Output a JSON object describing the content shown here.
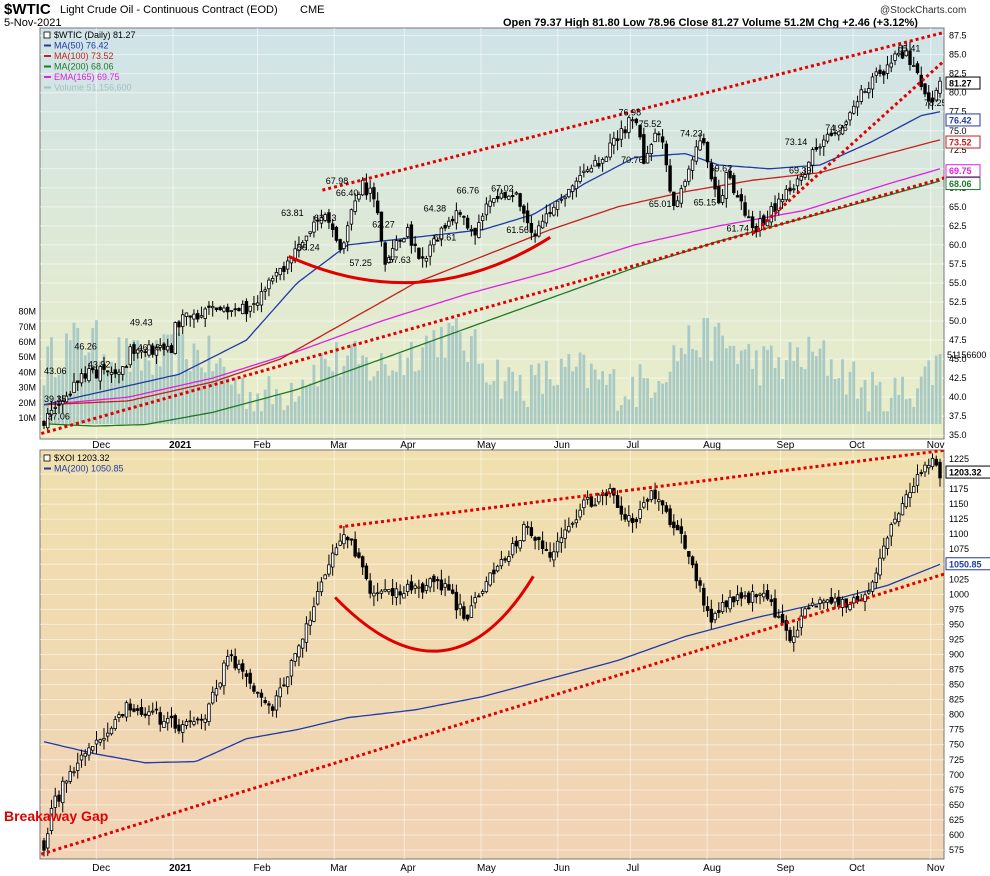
{
  "header": {
    "symbol": "$WTIC",
    "name": "Light Crude Oil - Continuous Contract (EOD)",
    "exchange": "CME",
    "date": "5-Nov-2021",
    "ohlc": "Open 79.37  High 81.80  Low 78.96  Close 81.27  Volume 51.2M  Chg +2.46 (+3.12%)",
    "brand": "@StockCharts.com"
  },
  "chart_data": [
    {
      "type": "candlestick",
      "title": "$WTIC (Daily) 81.27",
      "legend": [
        {
          "label": "$WTIC (Daily) 81.27",
          "color": "#000000"
        },
        {
          "label": "MA(50) 76.42",
          "color": "#1f3aa8"
        },
        {
          "label": "MA(100) 73.52",
          "color": "#c81e1e"
        },
        {
          "label": "MA(200) 68.06",
          "color": "#1d7a28"
        },
        {
          "label": "EMA(165) 69.75",
          "color": "#e020e0"
        },
        {
          "label": "Volume 51,156,600",
          "color": "#9dc3c3"
        }
      ],
      "x_labels": [
        "Dec",
        "2021",
        "Feb",
        "Mar",
        "Apr",
        "May",
        "Jun",
        "Jul",
        "Aug",
        "Sep",
        "Oct",
        "Nov"
      ],
      "y_ticks": [
        35.0,
        37.5,
        40.0,
        42.5,
        45.0,
        47.5,
        50.0,
        52.5,
        55.0,
        57.5,
        60.0,
        62.5,
        65.0,
        67.5,
        70.0,
        72.5,
        75.0,
        77.5,
        80.0,
        82.5,
        85.0,
        87.5
      ],
      "ylim": [
        34.5,
        88.5
      ],
      "volume_ticks": [
        "10M",
        "20M",
        "30M",
        "40M",
        "50M",
        "60M",
        "70M",
        "80M"
      ],
      "volume_last_label": "51156600",
      "price_key": [
        {
          "label": "37.06",
          "t": 0.004,
          "v": 37.06
        },
        {
          "label": "39.35",
          "t": 0.02,
          "v": 39.35
        },
        {
          "label": "43.06",
          "t": 0.05,
          "v": 43.06
        },
        {
          "label": "43.92",
          "t": 0.1,
          "v": 43.92
        },
        {
          "label": "46.26",
          "t": 0.088,
          "v": 46.26
        },
        {
          "label": "46.16",
          "t": 0.155,
          "v": 46.16
        },
        {
          "label": "49.43",
          "t": 0.148,
          "v": 49.43
        },
        {
          "label": "51.8",
          "t": 0.2,
          "v": 51.8
        },
        {
          "label": "51.5",
          "t": 0.24,
          "v": 51.5
        },
        {
          "label": "57.5",
          "t": 0.29,
          "v": 57.5
        },
        {
          "label": "63.81",
          "t": 0.33,
          "v": 63.81
        },
        {
          "label": "59.24",
          "t": 0.355,
          "v": 59.24
        },
        {
          "label": "63.13",
          "t": 0.36,
          "v": 63.13
        },
        {
          "label": "67.98",
          "t": 0.375,
          "v": 67.98
        },
        {
          "label": "66.40",
          "t": 0.392,
          "v": 66.4
        },
        {
          "label": "57.25",
          "t": 0.405,
          "v": 57.25
        },
        {
          "label": "62.27",
          "t": 0.43,
          "v": 62.27
        },
        {
          "label": "57.63",
          "t": 0.445,
          "v": 57.63
        },
        {
          "label": "64.38",
          "t": 0.49,
          "v": 64.38
        },
        {
          "label": "60.61",
          "t": 0.51,
          "v": 60.61
        },
        {
          "label": "66.76",
          "t": 0.53,
          "v": 66.76
        },
        {
          "label": "67.02",
          "t": 0.56,
          "v": 67.02
        },
        {
          "label": "61.56",
          "t": 0.58,
          "v": 61.56
        },
        {
          "label": "66.0",
          "t": 0.61,
          "v": 66.0
        },
        {
          "label": "71.0",
          "t": 0.66,
          "v": 71.0
        },
        {
          "label": "76.98",
          "t": 0.7,
          "v": 76.98
        },
        {
          "label": "70.76",
          "t": 0.712,
          "v": 70.76
        },
        {
          "label": "75.52",
          "t": 0.73,
          "v": 75.52
        },
        {
          "label": "65.01",
          "t": 0.745,
          "v": 65.01
        },
        {
          "label": "74.23",
          "t": 0.78,
          "v": 74.23
        },
        {
          "label": "65.15",
          "t": 0.8,
          "v": 65.15
        },
        {
          "label": "69.62",
          "t": 0.81,
          "v": 69.62
        },
        {
          "label": "61.74",
          "t": 0.84,
          "v": 61.74
        },
        {
          "label": "69.39",
          "t": 0.9,
          "v": 69.39
        },
        {
          "label": "73.14",
          "t": 0.915,
          "v": 73.14
        },
        {
          "label": "74.96",
          "t": 0.945,
          "v": 74.96
        },
        {
          "label": "80.5",
          "t": 0.97,
          "v": 80.5
        },
        {
          "label": "85.41",
          "t": 1.02,
          "v": 85.41
        },
        {
          "label": "78.25",
          "t": 1.053,
          "v": 78.25
        },
        {
          "label": "81.27",
          "t": 1.062,
          "v": 81.27
        }
      ],
      "annotations": [
        {
          "text": "37.06",
          "t": 0.004,
          "v": 37.06
        },
        {
          "text": "39.35",
          "t": 0.0,
          "v": 39.35
        },
        {
          "text": "43.06",
          "t": 0.0,
          "v": 43.06
        },
        {
          "text": "43.92",
          "t": 0.052,
          "v": 43.92
        },
        {
          "text": "46.26",
          "t": 0.036,
          "v": 46.26
        },
        {
          "text": "46.16",
          "t": 0.111,
          "v": 46.16
        },
        {
          "text": "49.43",
          "t": 0.102,
          "v": 49.43
        },
        {
          "text": "63.81",
          "t": 0.281,
          "v": 63.81
        },
        {
          "text": "59.24",
          "t": 0.3,
          "v": 59.24
        },
        {
          "text": "63.13",
          "t": 0.32,
          "v": 63.13
        },
        {
          "text": "67.98",
          "t": 0.334,
          "v": 67.98
        },
        {
          "text": "66.40",
          "t": 0.346,
          "v": 66.4
        },
        {
          "text": "57.25",
          "t": 0.362,
          "v": 57.25
        },
        {
          "text": "62.27",
          "t": 0.389,
          "v": 62.27
        },
        {
          "text": "57.63",
          "t": 0.408,
          "v": 57.63
        },
        {
          "text": "64.38",
          "t": 0.45,
          "v": 64.38
        },
        {
          "text": "60.61",
          "t": 0.462,
          "v": 60.61
        },
        {
          "text": "66.76",
          "t": 0.489,
          "v": 66.76
        },
        {
          "text": "67.02",
          "t": 0.53,
          "v": 67.02
        },
        {
          "text": "61.56",
          "t": 0.548,
          "v": 61.56
        },
        {
          "text": "76.98",
          "t": 0.681,
          "v": 76.98
        },
        {
          "text": "70.76",
          "t": 0.684,
          "v": 70.76
        },
        {
          "text": "75.52",
          "t": 0.705,
          "v": 75.52
        },
        {
          "text": "65.01",
          "t": 0.717,
          "v": 65.01
        },
        {
          "text": "74.23",
          "t": 0.754,
          "v": 74.23
        },
        {
          "text": "65.15",
          "t": 0.77,
          "v": 65.15
        },
        {
          "text": "69.62",
          "t": 0.789,
          "v": 69.62
        },
        {
          "text": "61.74",
          "t": 0.809,
          "v": 61.74
        },
        {
          "text": "69.39",
          "t": 0.883,
          "v": 69.39
        },
        {
          "text": "73.14",
          "t": 0.878,
          "v": 73.14
        },
        {
          "text": "74.96",
          "t": 0.926,
          "v": 74.96
        },
        {
          "text": "85.41",
          "t": 1.012,
          "v": 85.41
        },
        {
          "text": "78.25",
          "t": 1.043,
          "v": 78.25
        }
      ],
      "ma_keys": {
        "ma50": [
          [
            0.0,
            39.0
          ],
          [
            0.08,
            41.0
          ],
          [
            0.16,
            43.0
          ],
          [
            0.24,
            47.5
          ],
          [
            0.3,
            55.0
          ],
          [
            0.36,
            60.0
          ],
          [
            0.44,
            61.0
          ],
          [
            0.52,
            62.0
          ],
          [
            0.58,
            64.0
          ],
          [
            0.64,
            68.0
          ],
          [
            0.7,
            71.5
          ],
          [
            0.76,
            72.0
          ],
          [
            0.8,
            70.5
          ],
          [
            0.86,
            70.0
          ],
          [
            0.92,
            70.5
          ],
          [
            0.98,
            73.5
          ],
          [
            1.04,
            77.0
          ],
          [
            1.062,
            77.5
          ]
        ],
        "ma100": [
          [
            0.0,
            39.0
          ],
          [
            0.1,
            39.5
          ],
          [
            0.2,
            42.0
          ],
          [
            0.28,
            45.0
          ],
          [
            0.36,
            50.0
          ],
          [
            0.44,
            55.0
          ],
          [
            0.52,
            58.5
          ],
          [
            0.6,
            62.0
          ],
          [
            0.68,
            65.0
          ],
          [
            0.76,
            67.0
          ],
          [
            0.84,
            68.5
          ],
          [
            0.92,
            69.5
          ],
          [
            1.0,
            72.0
          ],
          [
            1.062,
            73.8
          ]
        ],
        "ema165": [
          [
            0.0,
            39.0
          ],
          [
            0.1,
            40.0
          ],
          [
            0.2,
            42.5
          ],
          [
            0.3,
            46.0
          ],
          [
            0.4,
            50.0
          ],
          [
            0.5,
            53.5
          ],
          [
            0.6,
            56.5
          ],
          [
            0.7,
            60.0
          ],
          [
            0.8,
            62.5
          ],
          [
            0.9,
            64.5
          ],
          [
            1.0,
            68.0
          ],
          [
            1.062,
            70.0
          ]
        ],
        "ma200": [
          [
            0.0,
            36.5
          ],
          [
            0.06,
            36.2
          ],
          [
            0.12,
            36.4
          ],
          [
            0.2,
            38.0
          ],
          [
            0.3,
            41.0
          ],
          [
            0.4,
            45.0
          ],
          [
            0.5,
            49.0
          ],
          [
            0.6,
            53.0
          ],
          [
            0.7,
            57.0
          ],
          [
            0.8,
            60.5
          ],
          [
            0.9,
            63.5
          ],
          [
            1.0,
            66.5
          ],
          [
            1.062,
            68.4
          ]
        ]
      },
      "price_boxes": [
        {
          "label": "81.27",
          "v": 81.27,
          "bg": "#ffffff",
          "fg": "#000000",
          "border": "#000000"
        },
        {
          "label": "76.42",
          "v": 76.42,
          "bg": "#ffffff",
          "fg": "#1f3aa8",
          "border": "#1f3aa8"
        },
        {
          "label": "73.52",
          "v": 73.52,
          "bg": "#ffffff",
          "fg": "#c81e1e",
          "border": "#c81e1e"
        },
        {
          "label": "69.75",
          "v": 69.75,
          "bg": "#ffffff",
          "fg": "#e020e0",
          "border": "#e020e0"
        },
        {
          "label": "68.06",
          "v": 68.06,
          "bg": "#ffffff",
          "fg": "#1d7a28",
          "border": "#1d7a28"
        }
      ]
    },
    {
      "type": "candlestick",
      "title": "$XOI 1203.32",
      "legend": [
        {
          "label": "$XOI 1203.32",
          "color": "#000000"
        },
        {
          "label": "MA(200) 1050.85",
          "color": "#1f3aa8"
        }
      ],
      "x_labels": [
        "Dec",
        "2021",
        "Feb",
        "Mar",
        "Apr",
        "May",
        "Jun",
        "Jul",
        "Aug",
        "Sep",
        "Oct",
        "Nov"
      ],
      "y_ticks": [
        575,
        600,
        625,
        650,
        675,
        700,
        725,
        750,
        775,
        800,
        825,
        850,
        875,
        900,
        925,
        950,
        975,
        1000,
        1025,
        1050,
        1075,
        1100,
        1125,
        1150,
        1175,
        1200,
        1225
      ],
      "ylim": [
        560,
        1240
      ],
      "price_key": [
        {
          "label": "585",
          "t": 0.004,
          "v": 585
        },
        {
          "label": "640",
          "t": 0.008,
          "v": 640
        },
        {
          "label": "700",
          "t": 0.03,
          "v": 700
        },
        {
          "label": "740",
          "t": 0.055,
          "v": 740
        },
        {
          "label": "770",
          "t": 0.075,
          "v": 770
        },
        {
          "label": "820",
          "t": 0.1,
          "v": 820
        },
        {
          "label": "800",
          "t": 0.13,
          "v": 800
        },
        {
          "label": "780",
          "t": 0.16,
          "v": 780
        },
        {
          "label": "800",
          "t": 0.19,
          "v": 800
        },
        {
          "label": "900",
          "t": 0.22,
          "v": 900
        },
        {
          "label": "840",
          "t": 0.25,
          "v": 840
        },
        {
          "label": "815",
          "t": 0.27,
          "v": 815
        },
        {
          "label": "900",
          "t": 0.3,
          "v": 900
        },
        {
          "label": "1060",
          "t": 0.34,
          "v": 1060
        },
        {
          "label": "1100",
          "t": 0.36,
          "v": 1100
        },
        {
          "label": "1000",
          "t": 0.39,
          "v": 1000
        },
        {
          "label": "1010",
          "t": 0.43,
          "v": 1010
        },
        {
          "label": "1020",
          "t": 0.47,
          "v": 1020
        },
        {
          "label": "960",
          "t": 0.5,
          "v": 960
        },
        {
          "label": "1050",
          "t": 0.54,
          "v": 1050
        },
        {
          "label": "1110",
          "t": 0.57,
          "v": 1110
        },
        {
          "label": "1070",
          "t": 0.6,
          "v": 1070
        },
        {
          "label": "1150",
          "t": 0.64,
          "v": 1150
        },
        {
          "label": "1170",
          "t": 0.67,
          "v": 1170
        },
        {
          "label": "1110",
          "t": 0.7,
          "v": 1110
        },
        {
          "label": "1175",
          "t": 0.72,
          "v": 1175
        },
        {
          "label": "1080",
          "t": 0.76,
          "v": 1080
        },
        {
          "label": "960",
          "t": 0.79,
          "v": 960
        },
        {
          "label": "1000",
          "t": 0.82,
          "v": 1000
        },
        {
          "label": "990",
          "t": 0.86,
          "v": 990
        },
        {
          "label": "920",
          "t": 0.885,
          "v": 920
        },
        {
          "label": "990",
          "t": 0.91,
          "v": 990
        },
        {
          "label": "985",
          "t": 0.95,
          "v": 985
        },
        {
          "label": "1000",
          "t": 0.98,
          "v": 1000
        },
        {
          "label": "1100",
          "t": 1.0,
          "v": 1100
        },
        {
          "label": "1160",
          "t": 1.02,
          "v": 1160
        },
        {
          "label": "1200",
          "t": 1.04,
          "v": 1200
        },
        {
          "label": "1230",
          "t": 1.055,
          "v": 1230
        },
        {
          "label": "1203.32",
          "t": 1.062,
          "v": 1203.32
        }
      ],
      "ma_keys": {
        "ma200": [
          [
            0.0,
            755
          ],
          [
            0.06,
            735
          ],
          [
            0.12,
            720
          ],
          [
            0.18,
            722
          ],
          [
            0.24,
            760
          ],
          [
            0.3,
            775
          ],
          [
            0.36,
            795
          ],
          [
            0.44,
            808
          ],
          [
            0.52,
            830
          ],
          [
            0.6,
            860
          ],
          [
            0.68,
            890
          ],
          [
            0.76,
            930
          ],
          [
            0.84,
            960
          ],
          [
            0.92,
            985
          ],
          [
            1.0,
            1015
          ],
          [
            1.062,
            1050
          ]
        ]
      },
      "price_boxes": [
        {
          "label": "1203.32",
          "v": 1203.32,
          "bg": "#ffffff",
          "fg": "#000000",
          "border": "#000000"
        },
        {
          "label": "1050.85",
          "v": 1050.85,
          "bg": "#ffffff",
          "fg": "#1f3aa8",
          "border": "#1f3aa8"
        }
      ],
      "annotations": [
        {
          "text": "Breakaway Gap",
          "t": -0.04,
          "v": 610
        }
      ]
    }
  ],
  "colors": {
    "trendline": "#e00000",
    "bowl": "#e00000",
    "candle": "#000000",
    "upper_bg_top": "#cfe3e8",
    "upper_bg_bottom": "#e9ecc4",
    "lower_bg_top": "#ecdcab",
    "lower_bg_bottom": "#f0d2b4",
    "volume": "#9dc3c3"
  }
}
